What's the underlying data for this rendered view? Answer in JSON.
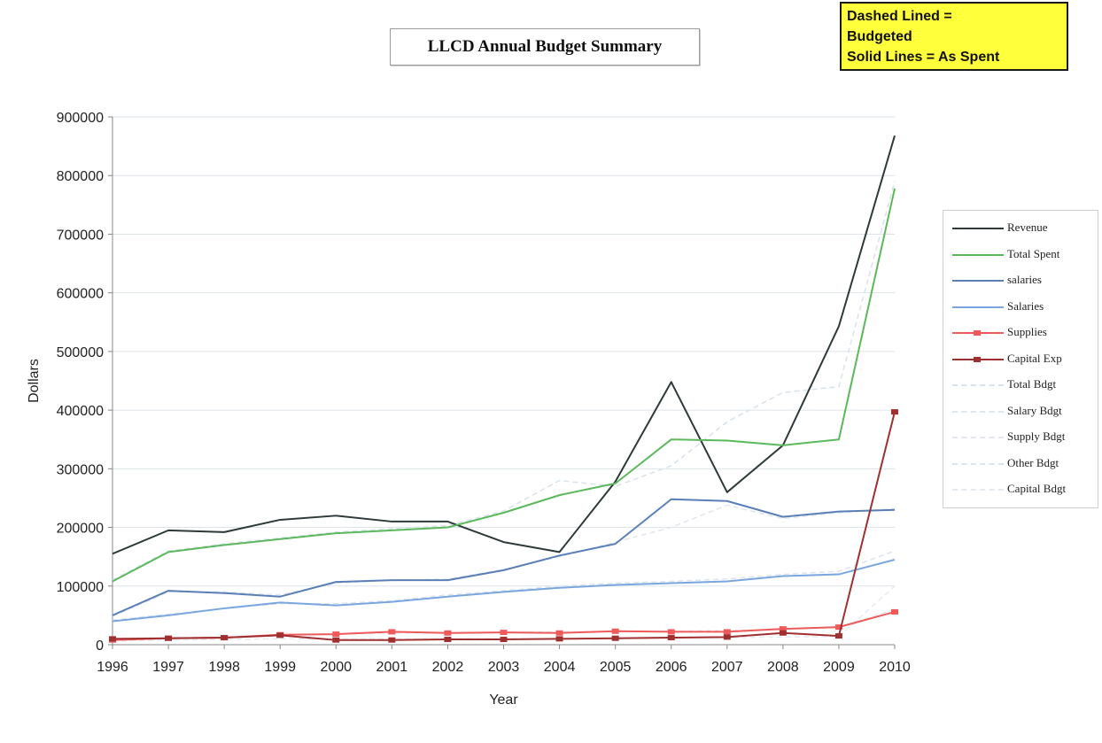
{
  "note": {
    "line1": "Dashed Lined =",
    "line2": "Budgeted",
    "line3": "Solid Lines = As Spent"
  },
  "chart_data": {
    "type": "line",
    "title": "LLCD Annual Budget Summary",
    "xlabel": "Year",
    "ylabel": "Dollars",
    "ylim": [
      0,
      900000
    ],
    "yticks": [
      0,
      100000,
      200000,
      300000,
      400000,
      500000,
      600000,
      700000,
      800000,
      900000
    ],
    "grid": true,
    "legend_position": "right",
    "x": [
      1996,
      1997,
      1998,
      1999,
      2000,
      2001,
      2002,
      2003,
      2004,
      2005,
      2006,
      2007,
      2008,
      2009,
      2010
    ],
    "series": [
      {
        "name": "Revenue",
        "color": "#2e3a3a",
        "dashed": false,
        "marker": false,
        "values": [
          155000,
          195000,
          192000,
          213000,
          220000,
          210000,
          210000,
          175000,
          158000,
          278000,
          448000,
          260000,
          340000,
          543000,
          868000
        ]
      },
      {
        "name": "Total Spent",
        "color": "#5cb85c",
        "dashed": false,
        "marker": false,
        "values": [
          108000,
          158000,
          170000,
          180000,
          190000,
          195000,
          200000,
          225000,
          255000,
          275000,
          350000,
          348000,
          340000,
          350000,
          778000
        ]
      },
      {
        "name": "salaries",
        "color": "#5a7fb8",
        "dashed": false,
        "marker": false,
        "values": [
          50000,
          92000,
          88000,
          82000,
          107000,
          110000,
          110000,
          127000,
          152000,
          172000,
          248000,
          245000,
          218000,
          227000,
          230000
        ]
      },
      {
        "name": "Salaries",
        "color": "#7aa6e0",
        "dashed": false,
        "marker": false,
        "values": [
          40000,
          50000,
          62000,
          72000,
          67000,
          73000,
          82000,
          90000,
          97000,
          102000,
          105000,
          108000,
          117000,
          120000,
          145000
        ]
      },
      {
        "name": "Supplies",
        "color": "#ee5a5a",
        "dashed": false,
        "marker": true,
        "values": [
          8000,
          11000,
          12000,
          17000,
          18000,
          22000,
          20000,
          21000,
          20000,
          23000,
          22000,
          22000,
          27000,
          30000,
          56000
        ]
      },
      {
        "name": "Capital Exp",
        "color": "#a03030",
        "dashed": false,
        "marker": true,
        "values": [
          10000,
          11000,
          12000,
          16000,
          8000,
          8000,
          9000,
          9000,
          10000,
          11000,
          12000,
          13000,
          20000,
          15000,
          397000
        ]
      },
      {
        "name": "Total Bdgt",
        "color": "#d8e2ec",
        "dashed": true,
        "marker": false,
        "values": [
          110000,
          160000,
          172000,
          182000,
          192000,
          198000,
          203000,
          228000,
          280000,
          270000,
          305000,
          380000,
          430000,
          440000,
          790000
        ]
      },
      {
        "name": "Salary Bdgt",
        "color": "#dfe6ee",
        "dashed": true,
        "marker": false,
        "values": [
          48000,
          90000,
          90000,
          85000,
          105000,
          110000,
          112000,
          128000,
          150000,
          175000,
          200000,
          238000,
          215000,
          225000,
          232000
        ]
      },
      {
        "name": "Supply Bdgt",
        "color": "#e3e8ef",
        "dashed": true,
        "marker": false,
        "values": [
          10000,
          12000,
          13000,
          16000,
          18000,
          20000,
          20000,
          21000,
          22000,
          22000,
          23000,
          24000,
          26000,
          30000,
          60000
        ]
      },
      {
        "name": "Other Bdgt",
        "color": "#dde4ec",
        "dashed": true,
        "marker": false,
        "values": [
          42000,
          52000,
          62000,
          70000,
          70000,
          75000,
          85000,
          92000,
          100000,
          105000,
          108000,
          112000,
          120000,
          125000,
          160000
        ]
      },
      {
        "name": "Capital Bdgt",
        "color": "#e6ebf0",
        "dashed": true,
        "marker": false,
        "values": [
          6000,
          8000,
          9000,
          10000,
          10000,
          10000,
          10000,
          10000,
          10000,
          11000,
          12000,
          12000,
          13000,
          14000,
          100000
        ]
      }
    ]
  }
}
